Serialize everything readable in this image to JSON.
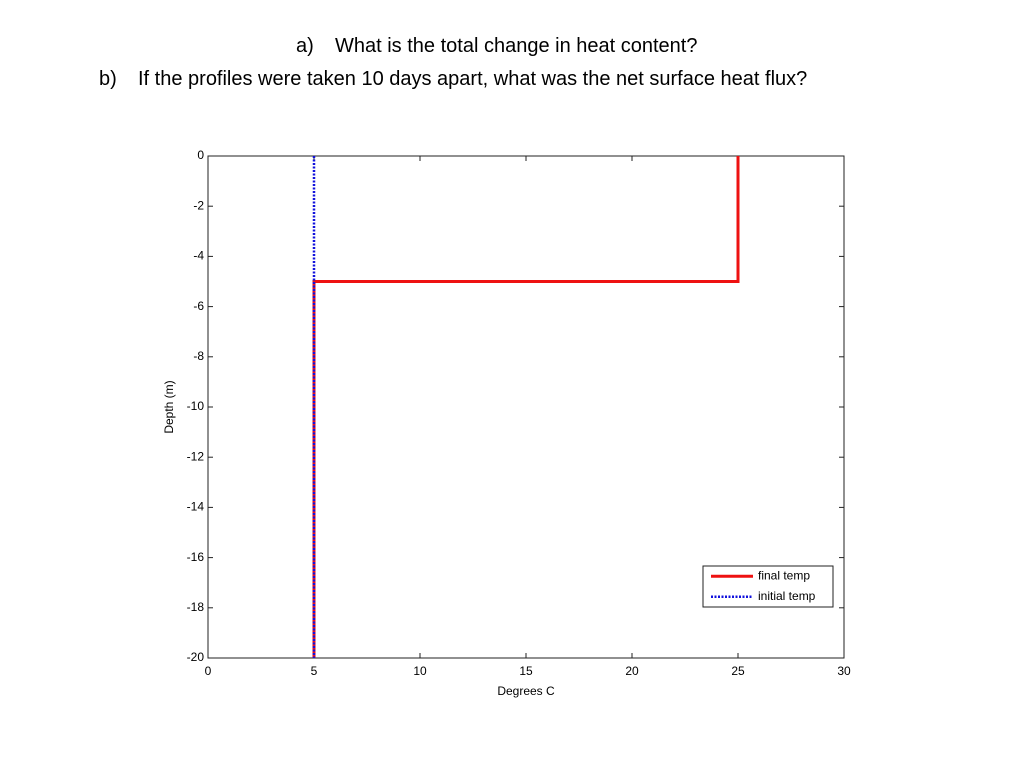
{
  "questions": [
    {
      "label": "a)",
      "text": "What is the total change in heat content?"
    },
    {
      "label": "b)",
      "text": "If the profiles were taken 10 days apart, what was the net surface heat flux?"
    }
  ],
  "chart_data": {
    "type": "line",
    "xlabel": "Degrees C",
    "ylabel": "Depth (m)",
    "xlim": [
      0,
      30
    ],
    "xticks": [
      0,
      5,
      10,
      15,
      20,
      25,
      30
    ],
    "ylim": [
      -20,
      0
    ],
    "yticks": [
      0,
      -2,
      -4,
      -6,
      -8,
      -10,
      -12,
      -14,
      -16,
      -18,
      -20
    ],
    "grid": false,
    "legend": "lower right",
    "series": [
      {
        "name": "final temp",
        "color": "#ee1111",
        "linestyle": "solid",
        "x": [
          25,
          25,
          5,
          5
        ],
        "values": [
          0,
          -5,
          -5,
          -20
        ]
      },
      {
        "name": "initial temp",
        "color": "#1111dd",
        "linestyle": "dotted",
        "x": [
          5,
          5
        ],
        "values": [
          0,
          -20
        ]
      }
    ]
  }
}
